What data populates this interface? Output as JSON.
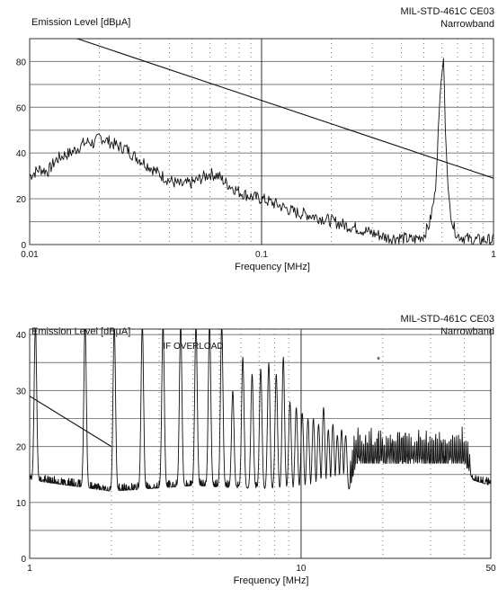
{
  "chart_data": [
    {
      "type": "line",
      "title": "MIL-STD-461C CE03",
      "subtitle": "Narrowband",
      "xlabel": "Frequency [MHz]",
      "ylabel": "Emission Level [dBμA]",
      "xscale": "log",
      "xlim": [
        0.01,
        1
      ],
      "ylim": [
        0,
        90
      ],
      "grid": true,
      "x_ticks": [
        0.01,
        0.1,
        1
      ],
      "x_tick_labels": [
        "0.01",
        "0.1",
        "1"
      ],
      "y_ticks": [
        0,
        20,
        40,
        60,
        80
      ],
      "y_tick_labels": [
        "0",
        "20",
        "40",
        "60",
        "80"
      ],
      "series": [
        {
          "role": "limit",
          "x": [
            0.015,
            1
          ],
          "y": [
            91,
            29
          ]
        },
        {
          "role": "measured",
          "x": [
            0.01,
            0.011,
            0.012,
            0.013,
            0.014,
            0.015,
            0.016,
            0.017,
            0.018,
            0.019,
            0.02,
            0.021,
            0.022,
            0.024,
            0.026,
            0.028,
            0.03,
            0.033,
            0.036,
            0.04,
            0.045,
            0.05,
            0.055,
            0.06,
            0.065,
            0.07,
            0.075,
            0.08,
            0.09,
            0.1,
            0.12,
            0.14,
            0.16,
            0.19,
            0.22,
            0.26,
            0.3,
            0.35,
            0.4,
            0.45,
            0.5,
            0.53,
            0.56,
            0.59,
            0.61,
            0.62,
            0.64,
            0.67,
            0.7,
            0.75,
            0.8,
            0.85,
            0.9,
            0.95,
            1.0
          ],
          "y": [
            30,
            33,
            32,
            37,
            39,
            40,
            42,
            44,
            45,
            44,
            47,
            46,
            45,
            43,
            42,
            39,
            37,
            34,
            31,
            28,
            26,
            27,
            29,
            31,
            30,
            27,
            25,
            23,
            21,
            20,
            17,
            14,
            13,
            11,
            9,
            7,
            5,
            3,
            3,
            2,
            4,
            9,
            22,
            68,
            82,
            50,
            20,
            8,
            4,
            3,
            2,
            2,
            2,
            2,
            2
          ]
        }
      ]
    },
    {
      "type": "line",
      "title": "MIL-STD-461C CE03",
      "subtitle": "Narrowband",
      "xlabel": "Frequency [MHz]",
      "ylabel": "Emission Level [dBμA]",
      "annotation": "IF OVERLOAD",
      "xscale": "log",
      "xlim": [
        1,
        50
      ],
      "ylim": [
        0,
        41
      ],
      "grid": true,
      "x_ticks": [
        1,
        10,
        50
      ],
      "x_tick_labels": [
        "1",
        "10",
        "50"
      ],
      "y_ticks": [
        0,
        10,
        20,
        30,
        40
      ],
      "y_tick_labels": [
        "0",
        "10",
        "20",
        "30",
        "40"
      ],
      "series": [
        {
          "role": "limit",
          "x": [
            1,
            2
          ],
          "y": [
            29,
            20
          ]
        },
        {
          "role": "measured",
          "noise_floor": [
            {
              "x": 1.0,
              "y": 14
            },
            {
              "x": 2.0,
              "y": 12
            },
            {
              "x": 4.0,
              "y": 13
            },
            {
              "x": 10.0,
              "y": 12
            },
            {
              "x": 15.0,
              "y": 12
            },
            {
              "x": 16.0,
              "y": 17
            },
            {
              "x": 30.0,
              "y": 17
            },
            {
              "x": 40.0,
              "y": 17
            },
            {
              "x": 43.0,
              "y": 14
            },
            {
              "x": 50.0,
              "y": 13
            }
          ],
          "harmonics": [
            {
              "x": 1.05,
              "y": 42
            },
            {
              "x": 1.6,
              "y": 42
            },
            {
              "x": 2.05,
              "y": 42
            },
            {
              "x": 2.6,
              "y": 42
            },
            {
              "x": 3.1,
              "y": 42
            },
            {
              "x": 3.6,
              "y": 42
            },
            {
              "x": 4.1,
              "y": 42
            },
            {
              "x": 4.6,
              "y": 42
            },
            {
              "x": 5.1,
              "y": 42
            },
            {
              "x": 5.6,
              "y": 30
            },
            {
              "x": 6.1,
              "y": 36
            },
            {
              "x": 6.6,
              "y": 33
            },
            {
              "x": 7.1,
              "y": 34
            },
            {
              "x": 7.6,
              "y": 35
            },
            {
              "x": 8.1,
              "y": 33
            },
            {
              "x": 8.6,
              "y": 36
            },
            {
              "x": 9.1,
              "y": 28
            },
            {
              "x": 9.6,
              "y": 27
            },
            {
              "x": 10.1,
              "y": 26
            },
            {
              "x": 10.6,
              "y": 25
            },
            {
              "x": 11.1,
              "y": 25
            },
            {
              "x": 11.6,
              "y": 24
            },
            {
              "x": 12.1,
              "y": 27
            },
            {
              "x": 12.6,
              "y": 23
            },
            {
              "x": 13.1,
              "y": 24
            },
            {
              "x": 13.6,
              "y": 22
            },
            {
              "x": 14.1,
              "y": 23
            },
            {
              "x": 14.6,
              "y": 22
            }
          ]
        }
      ]
    }
  ]
}
